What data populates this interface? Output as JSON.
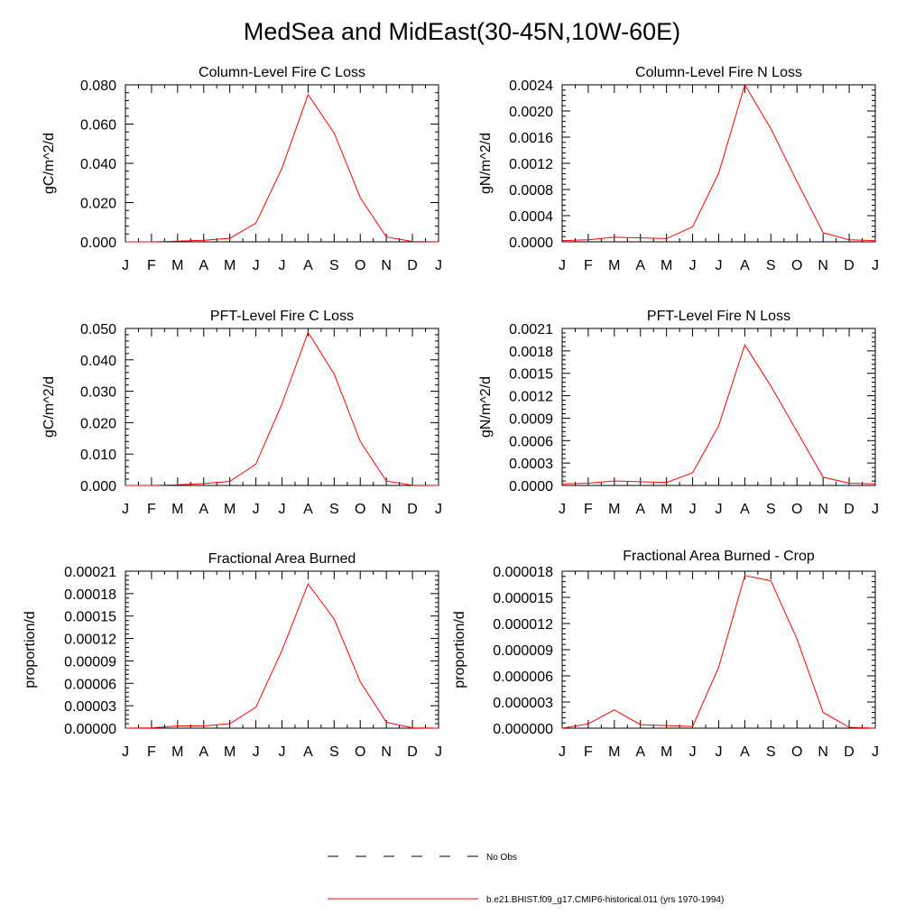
{
  "title": "MedSea and MidEast(30-45N,10W-60E)",
  "months": [
    "J",
    "F",
    "M",
    "A",
    "M",
    "J",
    "J",
    "A",
    "S",
    "O",
    "N",
    "D",
    "J"
  ],
  "colors": {
    "model": "#ff0000",
    "obs": "#000000",
    "axis": "#000000"
  },
  "legend": {
    "obs_label": "No Obs",
    "model_label": "b.e21.BHIST.f09_g17.CMIP6-historical.011 (yrs 1970-1994)"
  },
  "chart_data": [
    {
      "type": "line",
      "title": "Column-Level Fire C Loss",
      "ylabel": "gC/m^2/d",
      "ylim": [
        0,
        0.08
      ],
      "yticks": [
        "0.000",
        "0.020",
        "0.040",
        "0.060",
        "0.080"
      ],
      "minor_per_major": 4,
      "series": [
        {
          "values": [
            0.0,
            0.0,
            0.0003,
            0.0008,
            0.0018,
            0.0095,
            0.0375,
            0.075,
            0.0555,
            0.0225,
            0.0025,
            0.0002,
            0.0
          ]
        }
      ]
    },
    {
      "type": "line",
      "title": "Column-Level Fire N Loss",
      "ylabel": "gN/m^2/d",
      "ylim": [
        0,
        0.0024
      ],
      "yticks": [
        "0.0000",
        "0.0004",
        "0.0008",
        "0.0012",
        "0.0016",
        "0.0020",
        "0.0024"
      ],
      "minor_per_major": 4,
      "series": [
        {
          "values": [
            2e-05,
            3e-05,
            7e-05,
            6e-05,
            5e-05,
            0.00023,
            0.00105,
            0.0024,
            0.00173,
            0.00092,
            0.00014,
            3e-05,
            2e-05
          ]
        }
      ]
    },
    {
      "type": "line",
      "title": "PFT-Level Fire C Loss",
      "ylabel": "gC/m^2/d",
      "ylim": [
        0,
        0.05
      ],
      "yticks": [
        "0.000",
        "0.010",
        "0.020",
        "0.030",
        "0.040",
        "0.050"
      ],
      "minor_per_major": 4,
      "series": [
        {
          "values": [
            0.0,
            0.0,
            0.0002,
            0.0006,
            0.0013,
            0.0068,
            0.026,
            0.0488,
            0.0355,
            0.014,
            0.0014,
            0.0001,
            0.0
          ]
        }
      ]
    },
    {
      "type": "line",
      "title": "PFT-Level Fire N Loss",
      "ylabel": "gN/m^2/d",
      "ylim": [
        0,
        0.0021
      ],
      "yticks": [
        "0.0000",
        "0.0003",
        "0.0006",
        "0.0009",
        "0.0012",
        "0.0015",
        "0.0018",
        "0.0021"
      ],
      "minor_per_major": 4,
      "series": [
        {
          "values": [
            2e-05,
            3e-05,
            6e-05,
            5e-05,
            4e-05,
            0.00017,
            0.0008,
            0.00188,
            0.00133,
            0.00072,
            0.00011,
            3e-05,
            2e-05
          ]
        }
      ]
    },
    {
      "type": "line",
      "title": "Fractional Area Burned",
      "ylabel": "proportion/d",
      "ylim": [
        0,
        0.00021
      ],
      "yticks": [
        "0.00000",
        "0.00003",
        "0.00006",
        "0.00009",
        "0.00012",
        "0.00015",
        "0.00018",
        "0.00021"
      ],
      "minor_per_major": 4,
      "series": [
        {
          "values": [
            0.0,
            5e-07,
            3e-06,
            3e-06,
            6e-06,
            2.8e-05,
            0.000104,
            0.000193,
            0.000146,
            6.2e-05,
            8e-06,
            5e-07,
            0.0
          ]
        }
      ]
    },
    {
      "type": "line",
      "title": "Fractional Area Burned - Crop",
      "ylabel": "proportion/d",
      "ylim": [
        0,
        1.8e-05
      ],
      "yticks": [
        "0.000000",
        "0.000003",
        "0.000006",
        "0.000009",
        "0.000012",
        "0.000015",
        "0.000018"
      ],
      "minor_per_major": 4,
      "series": [
        {
          "values": [
            0.0,
            5e-07,
            2.1e-06,
            4e-07,
            3e-07,
            2e-07,
            7e-06,
            1.75e-05,
            1.69e-05,
            1.02e-05,
            1.8e-06,
            1e-07,
            0.0
          ]
        }
      ]
    }
  ]
}
